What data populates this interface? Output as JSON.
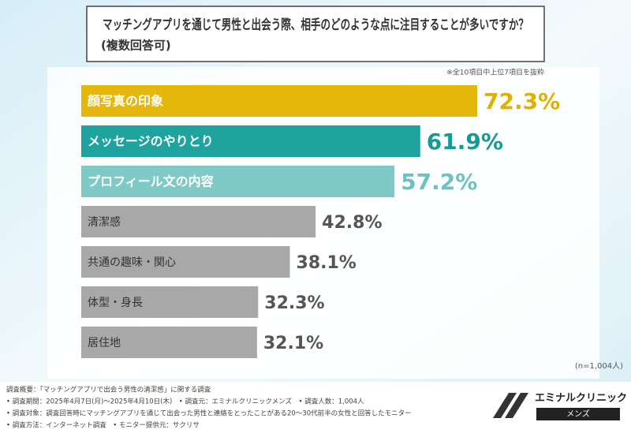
{
  "chart_data": {
    "type": "bar",
    "orientation": "horizontal",
    "title": "マッチングアプリを通じて男性と出会う際、相手のどのような点に注目することが多いですか？",
    "subtitle": "(複数回答可)",
    "note": "※全10項目中上位7項目を抜粋",
    "sample": "(n=1,004人)",
    "categories": [
      "顔写真の印象",
      "メッセージのやりとり",
      "プロフィール文の内容",
      "清潔感",
      "共通の趣味・関心",
      "体型・身長",
      "居住地"
    ],
    "values": [
      72.3,
      61.9,
      57.2,
      42.8,
      38.1,
      32.3,
      32.1
    ],
    "value_labels": [
      "72.3%",
      "61.9%",
      "57.2%",
      "42.8%",
      "38.1%",
      "32.3%",
      "32.1%"
    ],
    "colors": [
      "#e5b70b",
      "#1ea39f",
      "#7fcac6",
      "#a8a8a8",
      "#a8a8a8",
      "#a8a8a8",
      "#a8a8a8"
    ],
    "label_colors": [
      "#ffffff",
      "#ffffff",
      "#ffffff",
      "#333333",
      "#333333",
      "#333333",
      "#333333"
    ],
    "value_colors": [
      "#e0b000",
      "#159a95",
      "#6cc2be",
      "#555555",
      "#555555",
      "#555555",
      "#555555"
    ]
  },
  "footer": {
    "heading": "調査概要：「マッチングアプリで出会う男性の清潔感」に関する調査",
    "lines": [
      "• 調査期間：2025年4月7日(月)～2025年4月10日(木)　• 調査元：エミナルクリニックメンズ　• 調査人数：1,004人",
      "• 調査対象：調査回答時にマッチングアプリを通じて出会った男性と連絡をとったことがある20～30代前半の女性と回答したモニター",
      "• 調査方法：インターネット調査　• モニター提供元：サクリサ"
    ],
    "logo": "エミナルクリニック",
    "logo_sub": "メンズ"
  }
}
